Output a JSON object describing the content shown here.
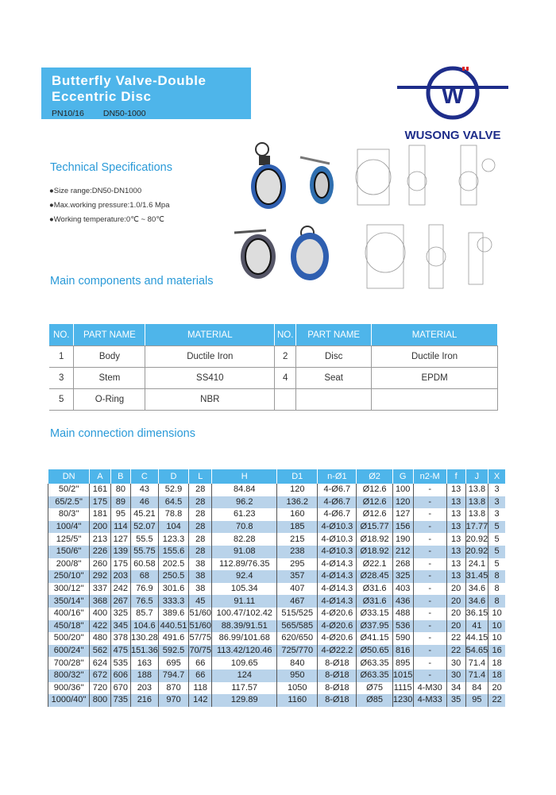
{
  "header": {
    "title_line1": "Butterfly Valve-Double",
    "title_line2": "Eccentric Disc",
    "pressure": "PN10/16",
    "range": "DN50-1000"
  },
  "logo": {
    "text": "WUSONG VALVE",
    "color": "#1e2d8a"
  },
  "tech": {
    "heading": "Technical Specifications",
    "items": [
      "●Size range:DN50-DN1000",
      "●Max.working pressure:1.0/1.6 Mpa",
      "●Working temperature:0℃ ~ 80℃"
    ]
  },
  "components": {
    "heading": "Main components and materials",
    "headers": [
      "NO.",
      "PART NAME",
      "MATERIAL",
      "NO.",
      "PART NAME",
      "MATERIAL"
    ],
    "rows": [
      [
        "1",
        "Body",
        "Ductile Iron",
        "2",
        "Disc",
        "Ductile Iron"
      ],
      [
        "3",
        "Stem",
        "SS410",
        "4",
        "Seat",
        "EPDM"
      ],
      [
        "5",
        "O-Ring",
        "NBR",
        "",
        "",
        ""
      ]
    ]
  },
  "dimensions": {
    "heading": "Main connection dimensions",
    "headers": [
      "DN",
      "A",
      "B",
      "C",
      "D",
      "L",
      "H",
      "D1",
      "n-Ø1",
      "Ø2",
      "G",
      "n2-M",
      "f",
      "J",
      "X"
    ],
    "rows": [
      [
        "50/2''",
        "161",
        "80",
        "43",
        "52.9",
        "28",
        "84.84",
        "120",
        "4-Ø6.7",
        "Ø12.6",
        "100",
        "-",
        "13",
        "13.8",
        "3"
      ],
      [
        "65/2.5''",
        "175",
        "89",
        "46",
        "64.5",
        "28",
        "96.2",
        "136.2",
        "4-Ø6.7",
        "Ø12.6",
        "120",
        "-",
        "13",
        "13.8",
        "3"
      ],
      [
        "80/3''",
        "181",
        "95",
        "45.21",
        "78.8",
        "28",
        "61.23",
        "160",
        "4-Ø6.7",
        "Ø12.6",
        "127",
        "-",
        "13",
        "13.8",
        "3"
      ],
      [
        "100/4''",
        "200",
        "114",
        "52.07",
        "104",
        "28",
        "70.8",
        "185",
        "4-Ø10.3",
        "Ø15.77",
        "156",
        "-",
        "13",
        "17.77",
        "5"
      ],
      [
        "125/5''",
        "213",
        "127",
        "55.5",
        "123.3",
        "28",
        "82.28",
        "215",
        "4-Ø10.3",
        "Ø18.92",
        "190",
        "-",
        "13",
        "20.92",
        "5"
      ],
      [
        "150/6''",
        "226",
        "139",
        "55.75",
        "155.6",
        "28",
        "91.08",
        "238",
        "4-Ø10.3",
        "Ø18.92",
        "212",
        "-",
        "13",
        "20.92",
        "5"
      ],
      [
        "200/8''",
        "260",
        "175",
        "60.58",
        "202.5",
        "38",
        "112.89/76.35",
        "295",
        "4-Ø14.3",
        "Ø22.1",
        "268",
        "-",
        "13",
        "24.1",
        "5"
      ],
      [
        "250/10''",
        "292",
        "203",
        "68",
        "250.5",
        "38",
        "92.4",
        "357",
        "4-Ø14.3",
        "Ø28.45",
        "325",
        "-",
        "13",
        "31.45",
        "8"
      ],
      [
        "300/12''",
        "337",
        "242",
        "76.9",
        "301.6",
        "38",
        "105.34",
        "407",
        "4-Ø14.3",
        "Ø31.6",
        "403",
        "-",
        "20",
        "34.6",
        "8"
      ],
      [
        "350/14''",
        "368",
        "267",
        "76.5",
        "333.3",
        "45",
        "91.11",
        "467",
        "4-Ø14.3",
        "Ø31.6",
        "436",
        "-",
        "20",
        "34.6",
        "8"
      ],
      [
        "400/16''",
        "400",
        "325",
        "85.7",
        "389.6",
        "51/60",
        "100.47/102.42",
        "515/525",
        "4-Ø20.6",
        "Ø33.15",
        "488",
        "-",
        "20",
        "36.15",
        "10"
      ],
      [
        "450/18''",
        "422",
        "345",
        "104.6",
        "440.51",
        "51/60",
        "88.39/91.51",
        "565/585",
        "4-Ø20.6",
        "Ø37.95",
        "536",
        "-",
        "20",
        "41",
        "10"
      ],
      [
        "500/20''",
        "480",
        "378",
        "130.28",
        "491.6",
        "57/75",
        "86.99/101.68",
        "620/650",
        "4-Ø20.6",
        "Ø41.15",
        "590",
        "-",
        "22",
        "44.15",
        "10"
      ],
      [
        "600/24''",
        "562",
        "475",
        "151.36",
        "592.5",
        "70/75",
        "113.42/120.46",
        "725/770",
        "4-Ø22.2",
        "Ø50.65",
        "816",
        "-",
        "22",
        "54.65",
        "16"
      ],
      [
        "700/28''",
        "624",
        "535",
        "163",
        "695",
        "66",
        "109.65",
        "840",
        "8-Ø18",
        "Ø63.35",
        "895",
        "-",
        "30",
        "71.4",
        "18"
      ],
      [
        "800/32''",
        "672",
        "606",
        "188",
        "794.7",
        "66",
        "124",
        "950",
        "8-Ø18",
        "Ø63.35",
        "1015",
        "-",
        "30",
        "71.4",
        "18"
      ],
      [
        "900/36''",
        "720",
        "670",
        "203",
        "870",
        "118",
        "117.57",
        "1050",
        "8-Ø18",
        "Ø75",
        "1115",
        "4-M30",
        "34",
        "84",
        "20"
      ],
      [
        "1000/40''",
        "800",
        "735",
        "216",
        "970",
        "142",
        "129.89",
        "1160",
        "8-Ø18",
        "Ø85",
        "1230",
        "4-M33",
        "35",
        "95",
        "22"
      ]
    ]
  },
  "colors": {
    "accent": "#4eb5ea",
    "row_alt": "#b9d3ea",
    "heading": "#2a9ad8"
  }
}
